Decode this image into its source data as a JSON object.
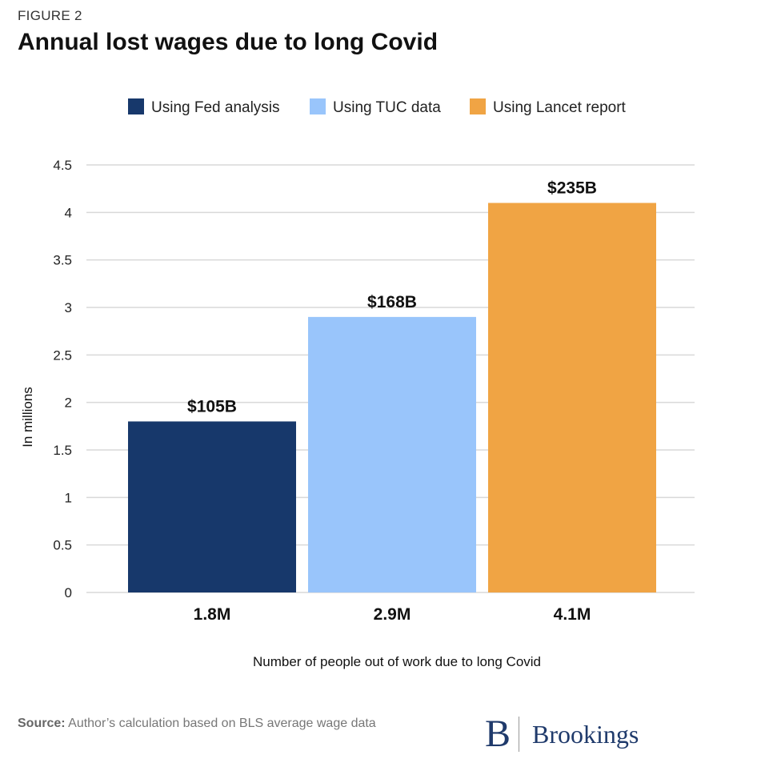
{
  "figure_label": "FIGURE 2",
  "source_label": "Source:",
  "source_text": "Author’s calculation based on BLS average wage data",
  "brand_letter": "B",
  "brand_name": "Brookings",
  "colors": {
    "fed": "#17386b",
    "tuc": "#99c5fb",
    "lancet": "#f0a444",
    "grid": "#d9d9d9"
  },
  "chart_data": {
    "type": "bar",
    "title": "Annual lost wages due to long Covid",
    "xlabel": "Number of people out of work due to long Covid",
    "ylabel": "In millions",
    "ylim": [
      0,
      4.5
    ],
    "yticks": [
      "0",
      "0.5",
      "1",
      "1.5",
      "2",
      "2.5",
      "3",
      "3.5",
      "4",
      "4.5"
    ],
    "categories": [
      "1.8M",
      "2.9M",
      "4.1M"
    ],
    "values": [
      1.8,
      2.9,
      4.1
    ],
    "data_labels": [
      "$105B",
      "$168B",
      "$235B"
    ],
    "legend": [
      {
        "label": "Using Fed analysis",
        "color": "#17386b"
      },
      {
        "label": "Using TUC data",
        "color": "#99c5fb"
      },
      {
        "label": "Using Lancet report",
        "color": "#f0a444"
      }
    ],
    "grid": true,
    "legend_position": "top-center"
  }
}
